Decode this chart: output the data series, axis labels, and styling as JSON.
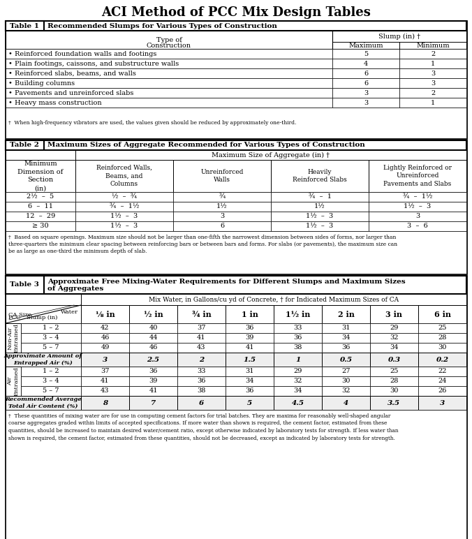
{
  "title": "ACI Method of PCC Mix Design Tables",
  "table1": {
    "header": "Recommended Slumps for Various Types of Construction",
    "rows": [
      [
        "• Reinforced foundation walls and footings",
        "5",
        "2"
      ],
      [
        "• Plain footings, caissons, and substructure walls",
        "4",
        "1"
      ],
      [
        "• Reinforced slabs, beams, and walls",
        "6",
        "3"
      ],
      [
        "• Building columns",
        "6",
        "3"
      ],
      [
        "• Pavements and unreinforced slabs",
        "3",
        "2"
      ],
      [
        "• Heavy mass construction",
        "3",
        "1"
      ]
    ],
    "footnote": "†  When high-frequency vibrators are used, the values given should be reduced by approximately one-third."
  },
  "table2": {
    "header": "Maximum Sizes of Aggregate Recommended for Various Types of Construction",
    "col1_header": "Minimum\nDimension of\nSection\n(in)",
    "col_span_header": "Maximum Size of Aggregate (in) †",
    "subcol_headers": [
      "Reinforced Walls,\nBeams, and\nColumns",
      "Unreinforced\nWalls",
      "Heavily\nReinforced Slabs",
      "Lightly Reinforced or\nUnreinforced\nPavements and Slabs"
    ],
    "rows": [
      [
        "2½  –  5",
        "½  –  ¾",
        "¾",
        "¾  –  1",
        "¾  –  1½"
      ],
      [
        "6  –  11",
        "¾  –  1½",
        "1½",
        "1½",
        "1½  –  3"
      ],
      [
        "12  –  29",
        "1½  –  3",
        "3",
        "1½  –  3",
        "3"
      ],
      [
        "≥ 30",
        "1½  –  3",
        "6",
        "1½  –  3",
        "3  –  6"
      ]
    ],
    "footnote_lines": [
      "†  Based on square openings. Maximum size should not be larger than one-fifth the narrowest dimension between sides of forms, nor larger than",
      "three-quarters the minimum clear spacing between reinforcing bars or between bars and forms. For slabs (or pavements), the maximum size can",
      "be as large as one-third the minimum depth of slab."
    ]
  },
  "table3": {
    "header_line1": "Approximate Free Mixing-Water Requirements for Different Slumps and Maximum Sizes",
    "header_line2": "of Aggregates",
    "mix_water_header": "Mix Water, in Gallons/cu yd of Concrete, † for Indicated Maximum Sizes of CA",
    "col_headers": [
      "⅛ in",
      "½ in",
      "¾ in",
      "1 in",
      "1½ in",
      "2 in",
      "3 in",
      "6 in"
    ],
    "section1_label": "Non-Air\nEntrained",
    "section1_rows": [
      [
        "1 – 2",
        "42",
        "40",
        "37",
        "36",
        "33",
        "31",
        "29",
        "25"
      ],
      [
        "3 – 4",
        "46",
        "44",
        "41",
        "39",
        "36",
        "34",
        "32",
        "28"
      ],
      [
        "5 – 7",
        "49",
        "46",
        "43",
        "41",
        "38",
        "36",
        "34",
        "30"
      ]
    ],
    "air_row_label": "Approximate Amount of\nEntrapped Air (%)",
    "air_row": [
      "3",
      "2.5",
      "2",
      "1.5",
      "1",
      "0.5",
      "0.3",
      "0.2"
    ],
    "section2_label": "Air\nEntrained",
    "section2_rows": [
      [
        "1 – 2",
        "37",
        "36",
        "33",
        "31",
        "29",
        "27",
        "25",
        "22"
      ],
      [
        "3 – 4",
        "41",
        "39",
        "36",
        "34",
        "32",
        "30",
        "28",
        "24"
      ],
      [
        "5 – 7",
        "43",
        "41",
        "38",
        "36",
        "34",
        "32",
        "30",
        "26"
      ]
    ],
    "rec_air_label": "Recommended Average\nTotal Air Content (%)",
    "rec_air_row": [
      "8",
      "7",
      "6",
      "5",
      "4.5",
      "4",
      "3.5",
      "3"
    ],
    "footnote_lines": [
      "†  These quantities of mixing water are for use in computing cement factors for trial batches. They are maxima for reasonably well-shaped angular",
      "coarse aggregates graded within limits of accepted specifications. If more water than shown is required, the cement factor, estimated from these",
      "quantities, should be increased to maintain desired water/cement ratio, except otherwise indicated by laboratory tests for strength. If less water than",
      "shown is required, the cement factor, estimated from these quantities, should not be decreased, except as indicated by laboratory tests for strength."
    ]
  },
  "colors": {
    "white": "#ffffff",
    "light_gray": "#e8e8e8",
    "black": "#000000"
  }
}
